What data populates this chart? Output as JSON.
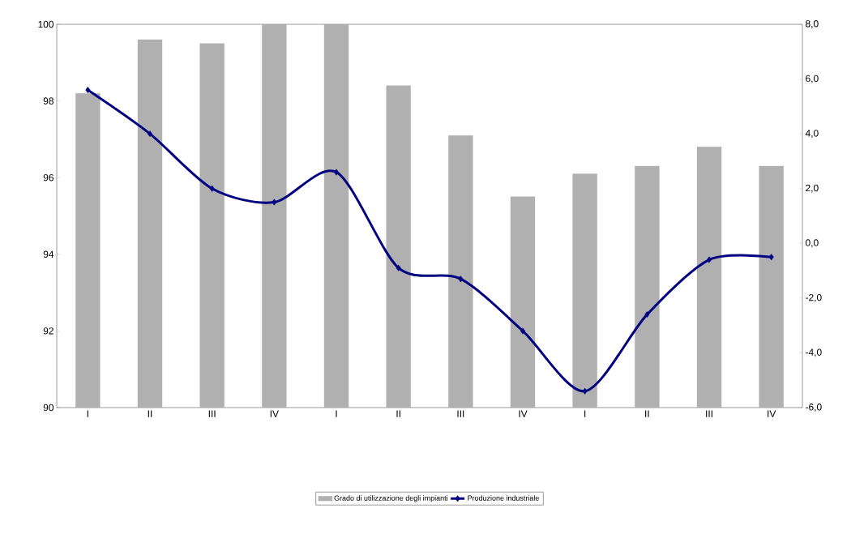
{
  "chart_data": {
    "type": "bar",
    "categories": [
      "I",
      "II",
      "III",
      "IV",
      "I",
      "II",
      "III",
      "IV",
      "I",
      "II",
      "III",
      "IV"
    ],
    "series": [
      {
        "name": "Grado di utilizzazione degli impianti",
        "color": "#b0b0b0",
        "values": [
          98.2,
          99.6,
          99.5,
          100,
          100,
          98.4,
          97.1,
          95.5,
          96.1,
          96.3,
          96.8,
          96.3
        ]
      },
      {
        "name": "Produzione industriale",
        "type": "line",
        "axis": "y2",
        "color": "#000080",
        "values": [
          5.6,
          4.0,
          2.0,
          1.5,
          2.6,
          -0.9,
          -1.3,
          -3.2,
          -5.4,
          -2.6,
          -0.6,
          -0.5
        ]
      }
    ],
    "ylim": [
      90,
      100
    ],
    "yticks": [
      90,
      92,
      94,
      96,
      98,
      100
    ],
    "y2lim": [
      -6,
      8
    ],
    "y2ticks": [
      {
        "value": -6,
        "label": "-6,0"
      },
      {
        "value": -4,
        "label": "-4,0"
      },
      {
        "value": -2,
        "label": "-2,0"
      },
      {
        "value": 0,
        "label": "0,0"
      },
      {
        "value": 2,
        "label": "2,0"
      },
      {
        "value": 4,
        "label": "4,0"
      },
      {
        "value": 6,
        "label": "6,0"
      },
      {
        "value": 8,
        "label": "8,0"
      }
    ],
    "marker": "diamond",
    "legend": "bottom",
    "grid": false
  }
}
